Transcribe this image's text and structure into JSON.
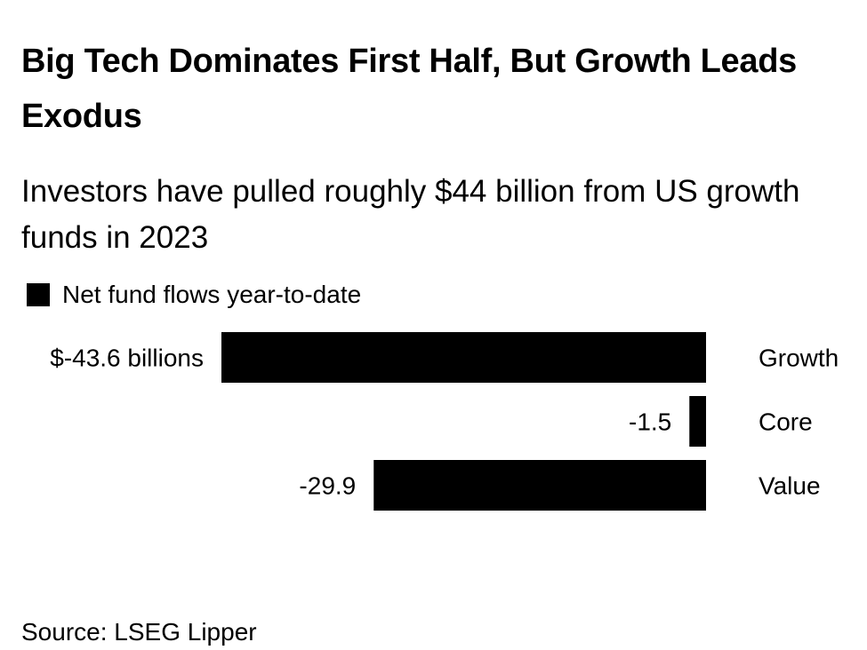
{
  "title": "Big Tech Dominates First Half, But Growth Leads Exodus",
  "subtitle": "Investors have pulled roughly $44 billion from US growth funds in 2023",
  "legend": {
    "label": "Net fund flows year-to-date",
    "color": "#000000"
  },
  "source": "Source: LSEG Lipper",
  "chart_data": {
    "type": "bar",
    "orientation": "horizontal",
    "categories": [
      "Growth",
      "Core",
      "Value"
    ],
    "values": [
      -43.6,
      -1.5,
      -29.9
    ],
    "data_labels": [
      "$-43.6 billions",
      "-1.5",
      "-29.9"
    ],
    "series": [
      {
        "name": "Net fund flows year-to-date",
        "values": [
          -43.6,
          -1.5,
          -29.9
        ]
      }
    ],
    "xlim": [
      -43.6,
      0
    ],
    "grid": false,
    "bar_color": "#000000",
    "unit": "billions of dollars"
  }
}
